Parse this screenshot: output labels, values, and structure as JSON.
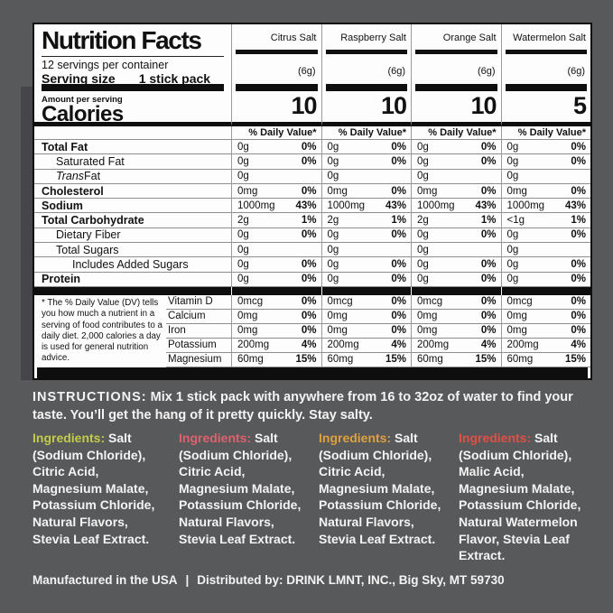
{
  "colors": {
    "background": "#58595b",
    "panel": "#fdfdfd",
    "citrus_accent": "#c3cc4a",
    "raspberry_accent": "#e0606e",
    "orange_accent": "#dfa13d",
    "watermelon_accent": "#df5046"
  },
  "label": {
    "title": "Nutrition Facts",
    "servings_per_container": "12 servings per container",
    "serving_size_label": "Serving size",
    "serving_size_value": "1 stick pack",
    "amount_per_serving_label": "Amount per serving",
    "calories_label": "Calories",
    "daily_value_header": "% Daily Value*",
    "columns": [
      {
        "flavor": "Citrus Salt",
        "serving_weight": "(6g)",
        "calories": "10"
      },
      {
        "flavor": "Raspberry Salt",
        "serving_weight": "(6g)",
        "calories": "10"
      },
      {
        "flavor": "Orange Salt",
        "serving_weight": "(6g)",
        "calories": "10"
      },
      {
        "flavor": "Watermelon Salt",
        "serving_weight": "(6g)",
        "calories": "5"
      }
    ],
    "nutrient_rows": [
      {
        "name": "Total Fat",
        "style": "bold",
        "indent": 0,
        "amounts": [
          "0g",
          "0g",
          "0g",
          "0g"
        ],
        "dvs": [
          "0%",
          "0%",
          "0%",
          "0%"
        ]
      },
      {
        "name": "Saturated Fat",
        "style": "regular",
        "indent": 1,
        "amounts": [
          "0g",
          "0g",
          "0g",
          "0g"
        ],
        "dvs": [
          "0%",
          "0%",
          "0%",
          "0%"
        ]
      },
      {
        "name": "Trans Fat",
        "style": "italic-prefix",
        "indent": 1,
        "amounts": [
          "0g",
          "0g",
          "0g",
          "0g"
        ],
        "dvs": [
          "",
          "",
          "",
          ""
        ]
      },
      {
        "name": "Cholesterol",
        "style": "bold",
        "indent": 0,
        "amounts": [
          "0mg",
          "0mg",
          "0mg",
          "0mg"
        ],
        "dvs": [
          "0%",
          "0%",
          "0%",
          "0%"
        ]
      },
      {
        "name": "Sodium",
        "style": "bold",
        "indent": 0,
        "amounts": [
          "1000mg",
          "1000mg",
          "1000mg",
          "1000mg"
        ],
        "dvs": [
          "43%",
          "43%",
          "43%",
          "43%"
        ]
      },
      {
        "name": "Total Carbohydrate",
        "style": "bold",
        "indent": 0,
        "amounts": [
          "2g",
          "2g",
          "2g",
          "<1g"
        ],
        "dvs": [
          "1%",
          "1%",
          "1%",
          "1%"
        ]
      },
      {
        "name": "Dietary Fiber",
        "style": "regular",
        "indent": 1,
        "amounts": [
          "0g",
          "0g",
          "0g",
          "0g"
        ],
        "dvs": [
          "0%",
          "0%",
          "0%",
          "0%"
        ]
      },
      {
        "name": "Total Sugars",
        "style": "regular",
        "indent": 1,
        "amounts": [
          "0g",
          "0g",
          "0g",
          "0g"
        ],
        "dvs": [
          "",
          "",
          "",
          ""
        ]
      },
      {
        "name": "Includes Added Sugars",
        "style": "regular",
        "indent": 2,
        "amounts": [
          "0g",
          "0g",
          "0g",
          "0g"
        ],
        "dvs": [
          "0%",
          "0%",
          "0%",
          "0%"
        ]
      },
      {
        "name": "Protein",
        "style": "bold",
        "indent": 0,
        "amounts": [
          "0g",
          "0g",
          "0g",
          "0g"
        ],
        "dvs": [
          "0%",
          "0%",
          "0%",
          "0%"
        ]
      }
    ],
    "footnote": "* The % Daily Value (DV) tells you how much a nutrient in a serving of food contributes to a daily diet. 2,000 calories a day is used for general nutrition advice.",
    "micronutrient_rows": [
      {
        "name": "Vitamin D",
        "amounts": [
          "0mcg",
          "0mcg",
          "0mcg",
          "0mcg"
        ],
        "dvs": [
          "0%",
          "0%",
          "0%",
          "0%"
        ]
      },
      {
        "name": "Calcium",
        "amounts": [
          "0mg",
          "0mg",
          "0mg",
          "0mg"
        ],
        "dvs": [
          "0%",
          "0%",
          "0%",
          "0%"
        ]
      },
      {
        "name": "Iron",
        "amounts": [
          "0mg",
          "0mg",
          "0mg",
          "0mg"
        ],
        "dvs": [
          "0%",
          "0%",
          "0%",
          "0%"
        ]
      },
      {
        "name": "Potassium",
        "amounts": [
          "200mg",
          "200mg",
          "200mg",
          "200mg"
        ],
        "dvs": [
          "4%",
          "4%",
          "4%",
          "4%"
        ]
      },
      {
        "name": "Magnesium",
        "amounts": [
          "60mg",
          "60mg",
          "60mg",
          "60mg"
        ],
        "dvs": [
          "15%",
          "15%",
          "15%",
          "15%"
        ]
      }
    ]
  },
  "instructions": {
    "label": "INSTRUCTIONS:",
    "text": "Mix 1 stick pack with anywhere from 16 to 32oz of water to find your taste. You’ll get the hang of it pretty quickly. Stay salty."
  },
  "ingredients": [
    {
      "flavor": "Citrus Salt",
      "label": "Ingredients:",
      "color": "#c3cc4a",
      "text": "Salt (Sodium Chloride), Citric Acid, Magnesium Malate, Potassium Chloride, Natural Flavors, Stevia Leaf Extract."
    },
    {
      "flavor": "Raspberry Salt",
      "label": "Ingredients:",
      "color": "#e0606e",
      "text": "Salt (Sodium Chloride), Citric Acid, Magnesium Malate, Potassium Chloride, Natural Flavors, Stevia Leaf Extract."
    },
    {
      "flavor": "Orange Salt",
      "label": "Ingredients:",
      "color": "#dfa13d",
      "text": "Salt (Sodium Chloride), Citric Acid, Magnesium Malate, Potassium Chloride, Natural Flavors, Stevia Leaf Extract."
    },
    {
      "flavor": "Watermelon Salt",
      "label": "Ingredients:",
      "color": "#df5046",
      "text": "Salt (Sodium Chloride), Malic Acid, Magnesium Malate, Potassium Chloride, Natural Watermelon Flavor, Stevia Leaf Extract."
    }
  ],
  "footer": {
    "manufactured": "Manufactured in the USA",
    "separator": "|",
    "distributed": "Distributed by: DRINK LMNT, INC., Big Sky, MT 59730"
  }
}
